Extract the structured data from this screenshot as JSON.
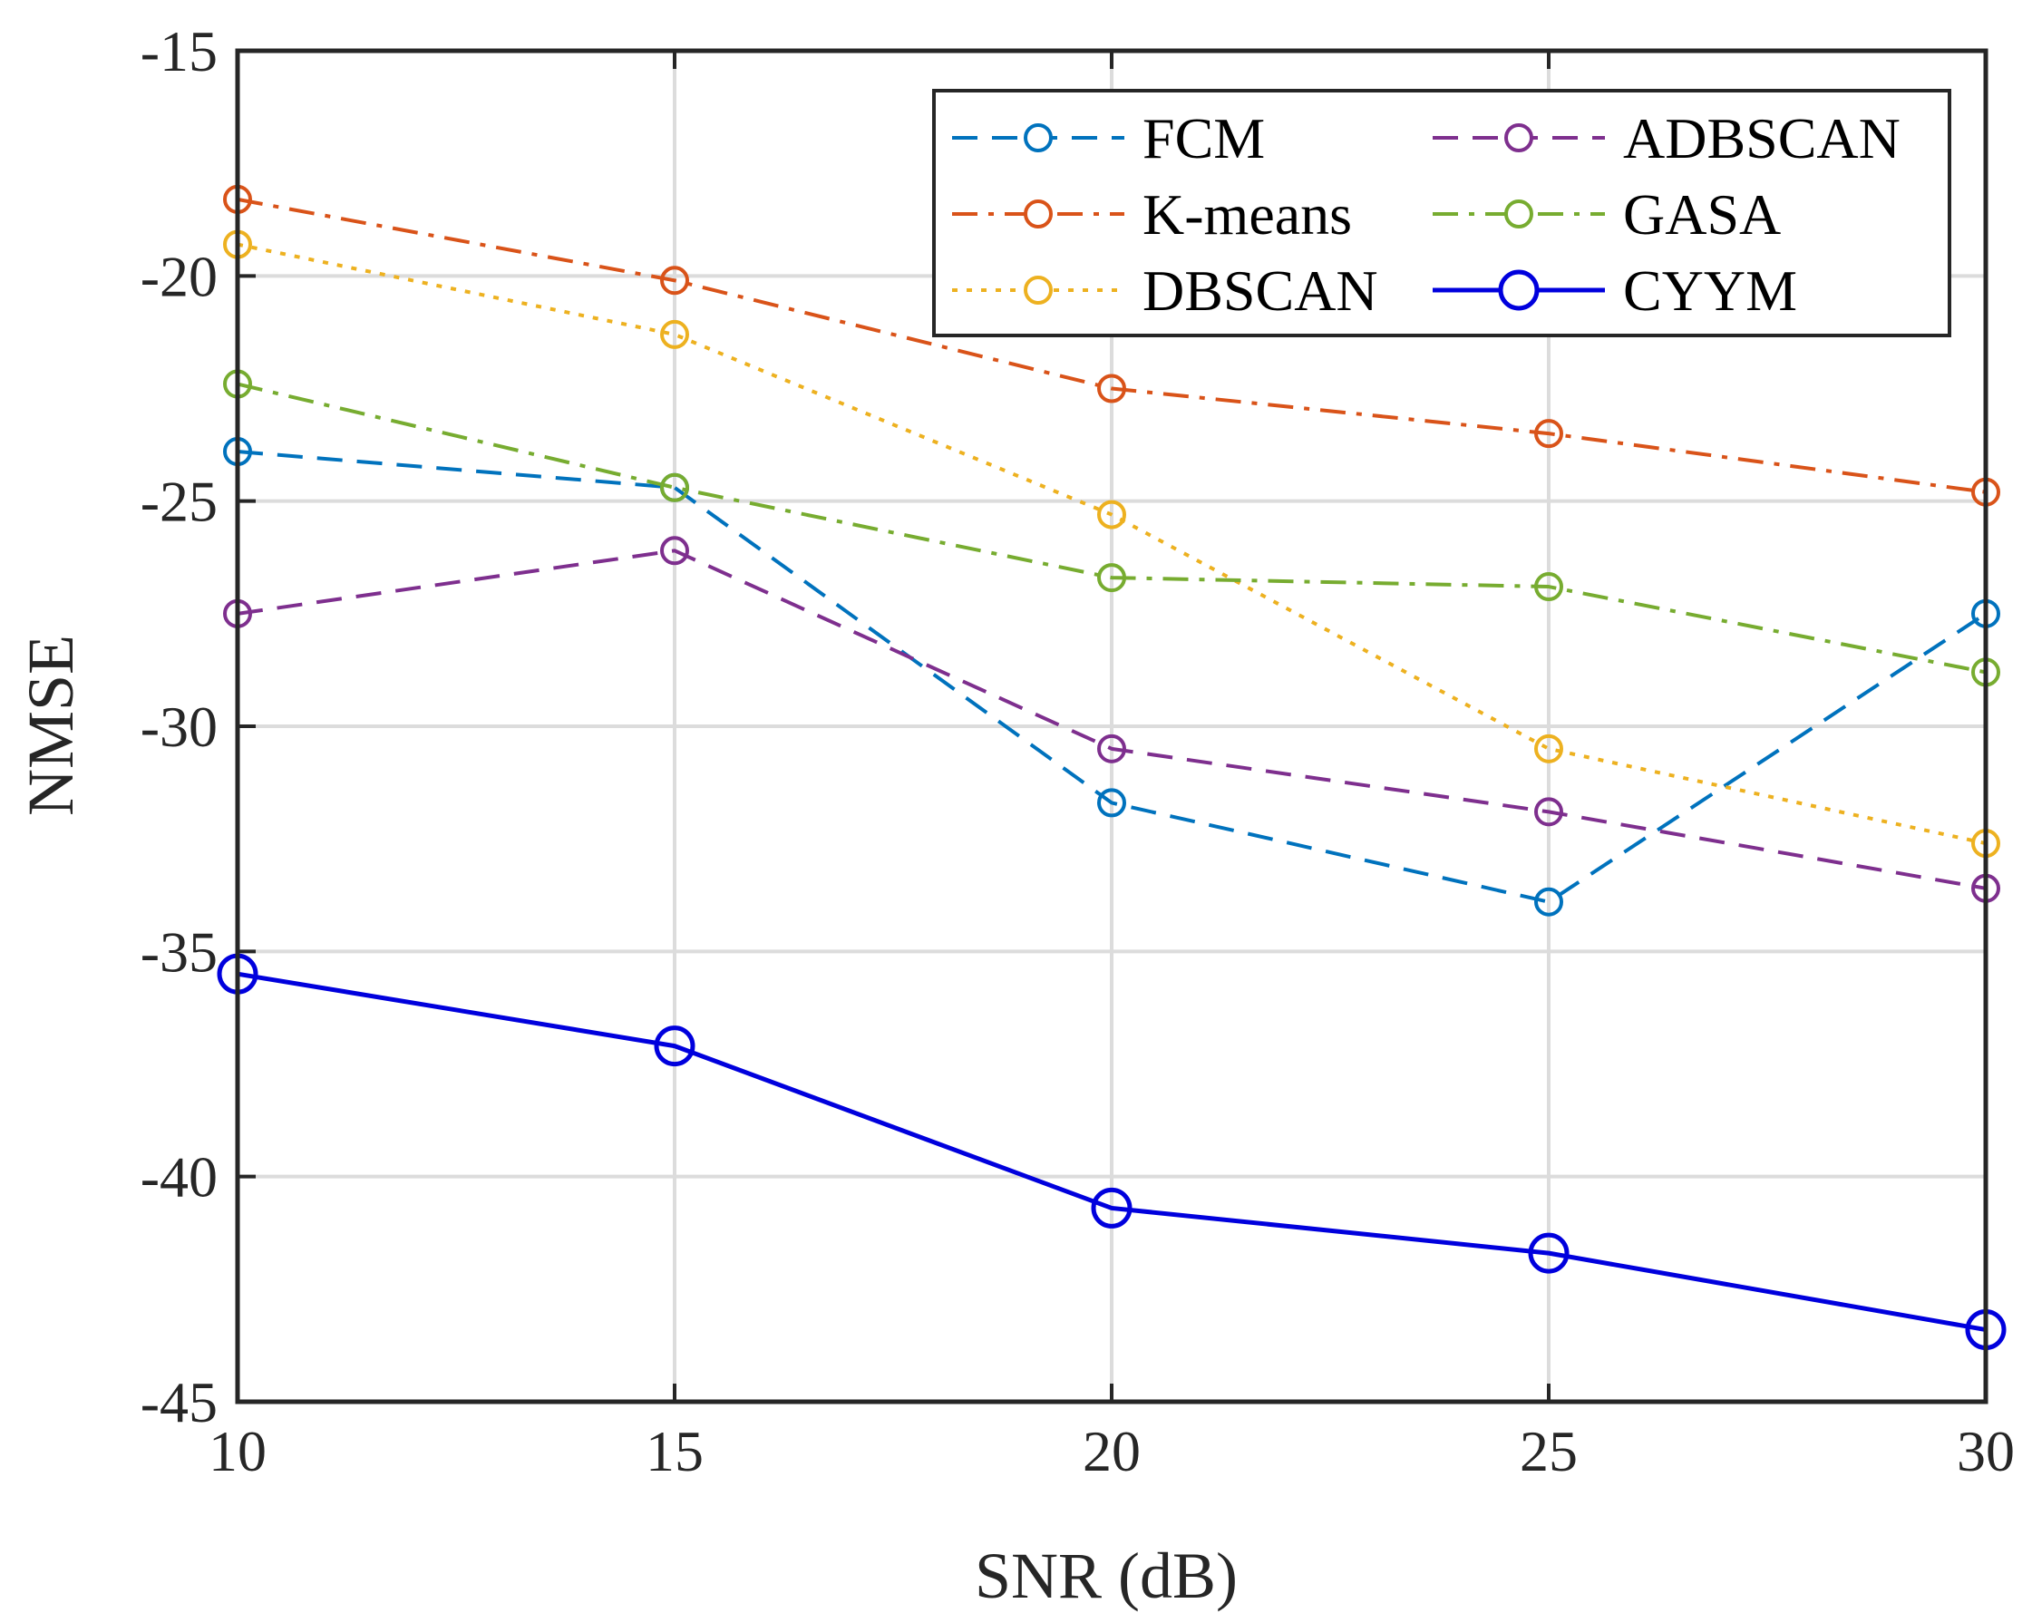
{
  "chart_data": {
    "type": "line",
    "title": "",
    "xlabel": "SNR (dB)",
    "ylabel": "NMSE",
    "x": [
      10,
      15,
      20,
      25,
      30
    ],
    "xlim": [
      10,
      30
    ],
    "ylim": [
      -45,
      -15
    ],
    "xticks": [
      10,
      15,
      20,
      25,
      30
    ],
    "yticks": [
      -15,
      -20,
      -25,
      -30,
      -35,
      -40,
      -45
    ],
    "xtick_labels": [
      "10",
      "15",
      "20",
      "25",
      "30"
    ],
    "ytick_labels": [
      "-15",
      "-20",
      "-25",
      "-30",
      "-35",
      "-40",
      "-45"
    ],
    "grid": true,
    "legend_position": "top-right",
    "series": [
      {
        "name": "FCM",
        "color": "#0072BD",
        "dash": "dashed",
        "marker": "circle",
        "values": [
          -23.9,
          -24.7,
          -31.7,
          -33.9,
          -27.5
        ]
      },
      {
        "name": "K-means",
        "color": "#D95319",
        "dash": "dashdot",
        "marker": "circle",
        "values": [
          -18.3,
          -20.1,
          -22.5,
          -23.5,
          -24.8
        ]
      },
      {
        "name": "DBSCAN",
        "color": "#EDB120",
        "dash": "dotted",
        "marker": "circle",
        "values": [
          -19.3,
          -21.3,
          -25.3,
          -30.5,
          -32.6
        ]
      },
      {
        "name": "ADBSCAN",
        "color": "#7E2F8E",
        "dash": "dashed",
        "marker": "circle",
        "values": [
          -27.5,
          -26.1,
          -30.5,
          -31.9,
          -33.6
        ]
      },
      {
        "name": "GASA",
        "color": "#77AC30",
        "dash": "dashdot",
        "marker": "circle",
        "values": [
          -22.4,
          -24.7,
          -26.7,
          -26.9,
          -28.8
        ]
      },
      {
        "name": "CYYM",
        "color": "#0000DD",
        "dash": "solid",
        "marker": "circle-large",
        "values": [
          -35.5,
          -37.1,
          -40.7,
          -41.7,
          -43.4
        ]
      }
    ]
  }
}
